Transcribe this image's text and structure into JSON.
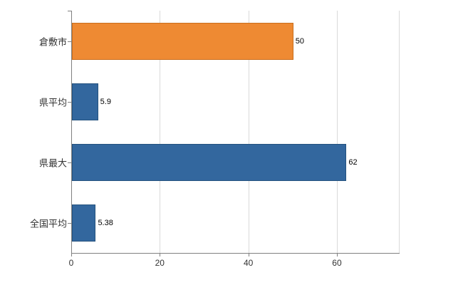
{
  "chart_data": {
    "type": "bar",
    "orientation": "horizontal",
    "title": "",
    "xlabel": "",
    "ylabel": "",
    "categories": [
      "倉敷市",
      "県平均",
      "県最大",
      "全国平均"
    ],
    "values": [
      50,
      5.9,
      62,
      5.38
    ],
    "value_labels": [
      "50",
      "5.9",
      "62",
      "5.38"
    ],
    "bar_colors": [
      "#ee8a33",
      "#33679e",
      "#33679e",
      "#33679e"
    ],
    "bar_border_colors": [
      "#c96f1e",
      "#24527f",
      "#24527f",
      "#24527f"
    ],
    "xlim": [
      0,
      74
    ],
    "x_ticks": [
      0,
      20,
      40,
      60
    ],
    "x_tick_labels": [
      "0",
      "20",
      "40",
      "60"
    ],
    "grid": "vertical",
    "gridline_color": "#d9d9d9",
    "axis_color": "#808080",
    "legend_position": "none"
  }
}
